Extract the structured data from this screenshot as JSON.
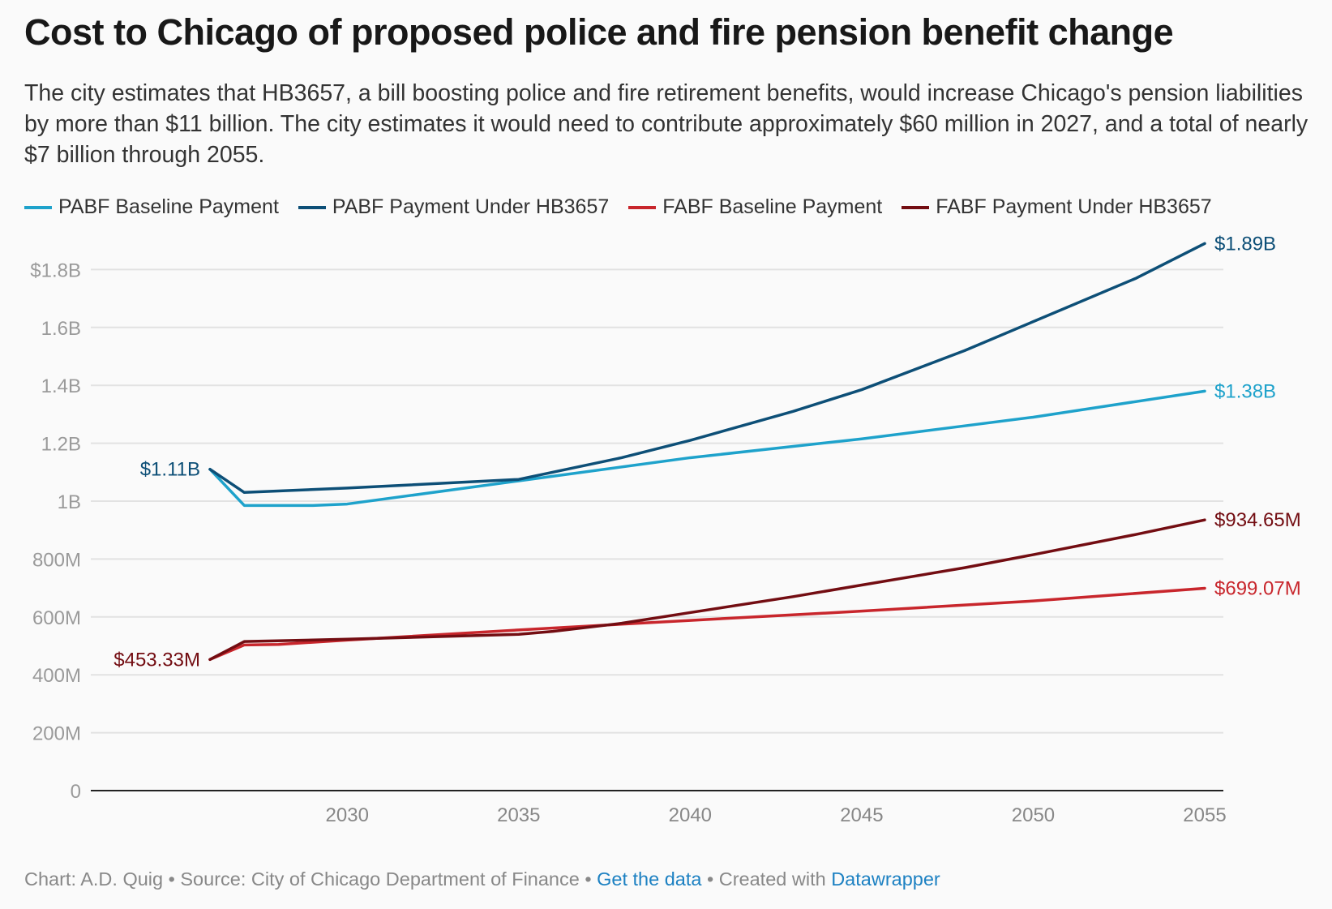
{
  "title": "Cost to Chicago of proposed police and fire pension benefit change",
  "subtitle": "The city estimates that HB3657, a bill boosting police and fire retirement benefits, would increase Chicago's pension liabilities by more than $11 billion. The city estimates it would need to contribute approximately $60 million in 2027, and a total of nearly $7 billion through 2055.",
  "footer": {
    "credit": "Chart: A.D. Quig • Source: City of Chicago Department of Finance •",
    "get_data": "Get the data",
    "created": "• Created with",
    "datawrapper": "Datawrapper"
  },
  "chart_data": {
    "type": "line",
    "title": "Cost to Chicago of proposed police and fire pension benefit change",
    "xlabel": "",
    "ylabel": "",
    "xlim": [
      2026,
      2055
    ],
    "ylim": [
      0,
      1.9
    ],
    "x_ticks": [
      2030,
      2035,
      2040,
      2045,
      2050,
      2055
    ],
    "y_ticks": [
      {
        "value": 0,
        "label": "0"
      },
      {
        "value": 0.2,
        "label": "200M"
      },
      {
        "value": 0.4,
        "label": "400M"
      },
      {
        "value": 0.6,
        "label": "600M"
      },
      {
        "value": 0.8,
        "label": "800M"
      },
      {
        "value": 1.0,
        "label": "1B"
      },
      {
        "value": 1.2,
        "label": "1.2B"
      },
      {
        "value": 1.4,
        "label": "1.4B"
      },
      {
        "value": 1.6,
        "label": "1.6B"
      },
      {
        "value": 1.8,
        "label": "$1.8B"
      }
    ],
    "units": "billions USD",
    "grid": true,
    "legend_position": "top-left",
    "series": [
      {
        "name": "PABF Baseline Payment",
        "color": "#1ea2cb",
        "x": [
          2026,
          2027,
          2029,
          2030,
          2035,
          2040,
          2045,
          2048,
          2050,
          2055
        ],
        "values": [
          1.11,
          0.985,
          0.985,
          0.99,
          1.07,
          1.15,
          1.215,
          1.26,
          1.29,
          1.38
        ],
        "start_label": "",
        "end_label": "$1.38B"
      },
      {
        "name": "PABF Payment Under HB3657",
        "color": "#0d4f77",
        "x": [
          2026,
          2027,
          2030,
          2035,
          2038,
          2040,
          2043,
          2045,
          2048,
          2050,
          2053,
          2055
        ],
        "values": [
          1.11,
          1.03,
          1.045,
          1.075,
          1.15,
          1.21,
          1.31,
          1.385,
          1.52,
          1.62,
          1.77,
          1.89
        ],
        "start_label": "$1.11B",
        "end_label": "$1.89B"
      },
      {
        "name": "FABF Baseline Payment",
        "color": "#c8262c",
        "x": [
          2026,
          2027,
          2028,
          2030,
          2035,
          2040,
          2045,
          2050,
          2055
        ],
        "values": [
          0.453,
          0.503,
          0.505,
          0.52,
          0.555,
          0.588,
          0.62,
          0.655,
          0.699
        ],
        "start_label": "",
        "end_label": "$699.07M"
      },
      {
        "name": "FABF Payment Under HB3657",
        "color": "#730d12",
        "x": [
          2026,
          2027,
          2030,
          2035,
          2036,
          2038,
          2040,
          2043,
          2045,
          2048,
          2050,
          2053,
          2055
        ],
        "values": [
          0.453,
          0.515,
          0.523,
          0.54,
          0.55,
          0.578,
          0.615,
          0.67,
          0.71,
          0.77,
          0.815,
          0.885,
          0.935
        ],
        "start_label": "$453.33M",
        "end_label": "$934.65M"
      }
    ]
  }
}
